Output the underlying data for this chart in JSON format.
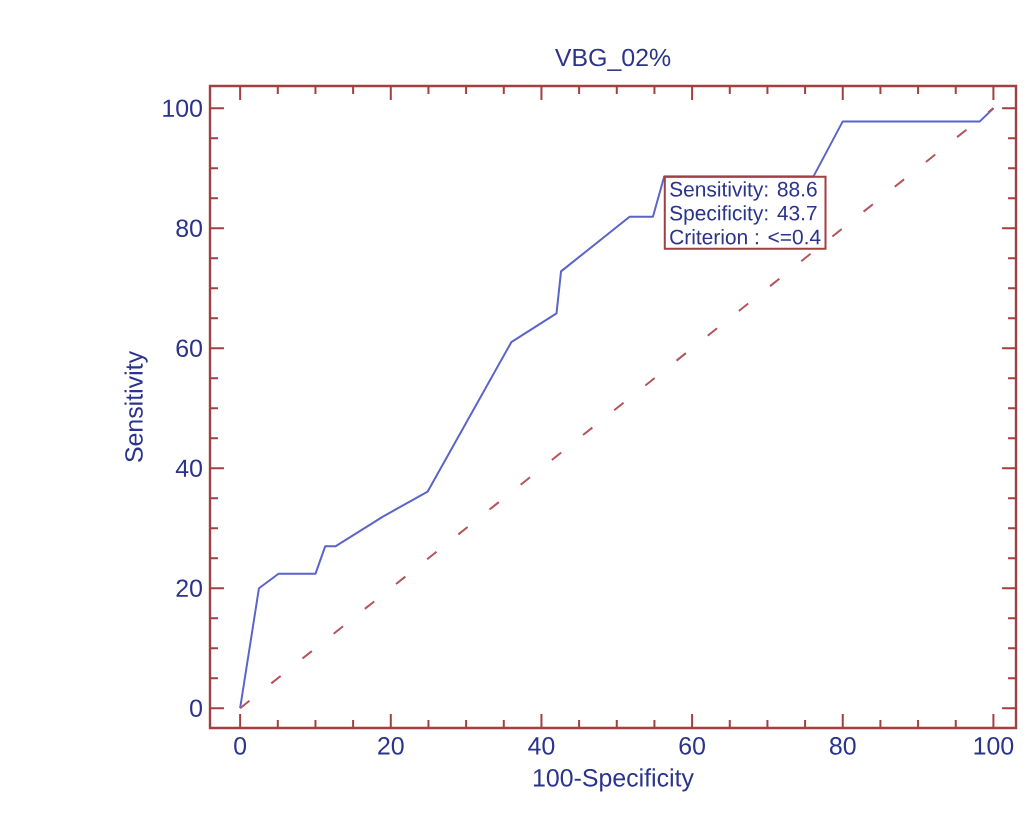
{
  "chart_data": {
    "type": "line",
    "title": "VBG_02%",
    "xlabel": "100-Specificity",
    "ylabel": "Sensitivity",
    "xlim": [
      -4,
      103
    ],
    "ylim": [
      -3.3,
      103.7
    ],
    "xticks": [
      0,
      {
        "value": 5,
        "label": null
      },
      {
        "value": 10,
        "label": null
      },
      {
        "value": 15,
        "label": null
      },
      20,
      {
        "value": 25,
        "label": null
      },
      {
        "value": 30,
        "label": null
      },
      {
        "value": 35,
        "label": null
      },
      40,
      {
        "value": 45,
        "label": null
      },
      {
        "value": 50,
        "label": null
      },
      {
        "value": 55,
        "label": null
      },
      60,
      {
        "value": 65,
        "label": null
      },
      {
        "value": 70,
        "label": null
      },
      {
        "value": 75,
        "label": null
      },
      80,
      {
        "value": 85,
        "label": null
      },
      {
        "value": 90,
        "label": null
      },
      {
        "value": 95,
        "label": null
      },
      100
    ],
    "yticks": [
      0,
      {
        "value": 5,
        "label": null
      },
      {
        "value": 10,
        "label": null
      },
      {
        "value": 15,
        "label": null
      },
      20,
      {
        "value": 25,
        "label": null
      },
      {
        "value": 30,
        "label": null
      },
      {
        "value": 35,
        "label": null
      },
      40,
      {
        "value": 45,
        "label": null
      },
      {
        "value": 50,
        "label": null
      },
      {
        "value": 55,
        "label": null
      },
      60,
      {
        "value": 65,
        "label": null
      },
      {
        "value": 70,
        "label": null
      },
      {
        "value": 75,
        "label": null
      },
      80,
      {
        "value": 85,
        "label": null
      },
      {
        "value": 90,
        "label": null
      },
      {
        "value": 95,
        "label": null
      },
      100
    ],
    "marker": "none",
    "grid": false,
    "series": [
      {
        "color": "#5b64c8",
        "line_style": "solid",
        "x": [
          0,
          2.5,
          5.1,
          10,
          11.3,
          12.7,
          18.9,
          24.9,
          36,
          42,
          42.6,
          51.7,
          54.8,
          56.3,
          76.1,
          80,
          98.2,
          100
        ],
        "values": [
          0,
          20,
          22.4,
          22.4,
          27,
          27,
          31.9,
          36.1,
          61,
          65.8,
          72.8,
          81.9,
          81.9,
          88.6,
          88.6,
          97.8,
          97.8,
          100
        ]
      },
      {
        "color": "#b5545c",
        "line_style": "dashed",
        "x": [
          0,
          100
        ],
        "values": [
          0,
          100
        ]
      }
    ],
    "annotations": [
      "Sensitivity: 88.6",
      "Specificity: 43.7",
      "Criterion : <=0.4"
    ]
  }
}
